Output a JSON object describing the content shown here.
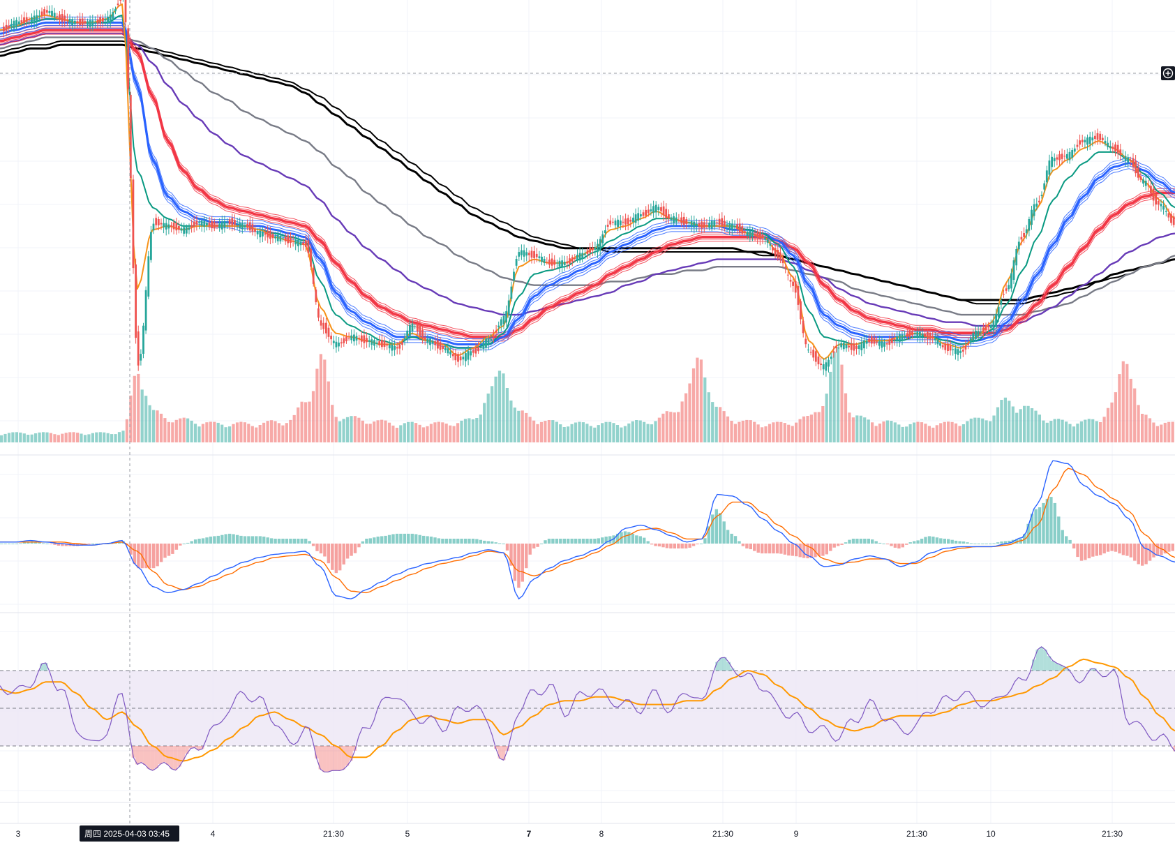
{
  "colors": {
    "up": "#26a69a",
    "down": "#ef5350",
    "ema_fast": "#f7931a",
    "ema_teal": "#089981",
    "ribbon_blue": "#2962ff",
    "ribbon_red": "#f23645",
    "purple": "#673ab7",
    "gray": "#787b86",
    "black": "#000000",
    "macd_line": "#2962ff",
    "signal_line": "#ff6d00",
    "rsi_line": "#7e57c2",
    "rsi_ma": "#ff9800",
    "rsi_band": "#ede7f6",
    "grid": "#f0f3fa",
    "separator": "#e0e3eb"
  },
  "crosshair": {
    "label": "周四 2025-04-03   03:45"
  },
  "plus_button": {
    "icon": "plus-circle-icon"
  },
  "x_axis": {
    "labels": [
      {
        "text": "3",
        "bold": false
      },
      {
        "text": "4",
        "bold": false
      },
      {
        "text": "21:30",
        "bold": false
      },
      {
        "text": "5",
        "bold": false
      },
      {
        "text": "7",
        "bold": true
      },
      {
        "text": "8",
        "bold": false
      },
      {
        "text": "21:30",
        "bold": false
      },
      {
        "text": "9",
        "bold": false
      },
      {
        "text": "21:30",
        "bold": false
      },
      {
        "text": "10",
        "bold": false
      },
      {
        "text": "21:30",
        "bold": false
      }
    ]
  },
  "chart_data": {
    "type": "line",
    "panes": [
      "price_with_moving_averages_and_volume",
      "macd",
      "rsi"
    ],
    "legend": "none",
    "grid": true,
    "price": {
      "close": [
        0.9,
        0.92,
        0.93,
        0.95,
        0.93,
        0.92,
        0.92,
        0.93,
        0.99,
        0.0,
        0.38,
        0.37,
        0.36,
        0.38,
        0.37,
        0.38,
        0.37,
        0.35,
        0.34,
        0.33,
        0.32,
        0.1,
        0.05,
        0.07,
        0.06,
        0.05,
        0.04,
        0.1,
        0.06,
        0.04,
        0.01,
        0.03,
        0.06,
        0.12,
        0.3,
        0.29,
        0.27,
        0.27,
        0.29,
        0.31,
        0.38,
        0.38,
        0.4,
        0.42,
        0.39,
        0.38,
        0.37,
        0.38,
        0.37,
        0.35,
        0.34,
        0.29,
        0.21,
        0.03,
        -0.01,
        0.05,
        0.04,
        0.06,
        0.05,
        0.07,
        0.08,
        0.07,
        0.04,
        0.03,
        0.08,
        0.1,
        0.2,
        0.34,
        0.43,
        0.55,
        0.56,
        0.6,
        0.61,
        0.58,
        0.55,
        0.49,
        0.43,
        0.38
      ],
      "volume": [
        0.5,
        0.5,
        0.5,
        0.5,
        0.5,
        0.5,
        0.5,
        0.5,
        0.6,
        4.0,
        1.6,
        1.3,
        1.2,
        1.1,
        1.0,
        1.0,
        1.0,
        1.0,
        1.1,
        1.2,
        2.2,
        4.5,
        1.5,
        1.3,
        1.2,
        1.1,
        1.0,
        1.0,
        1.0,
        1.0,
        1.1,
        1.2,
        2.6,
        3.8,
        1.6,
        1.3,
        1.1,
        1.0,
        1.0,
        1.0,
        1.0,
        1.0,
        1.1,
        1.2,
        1.6,
        2.6,
        4.6,
        1.8,
        1.3,
        1.1,
        1.0,
        1.0,
        1.1,
        1.3,
        2.2,
        4.8,
        1.4,
        1.2,
        1.1,
        1.0,
        1.0,
        1.0,
        1.0,
        1.1,
        1.2,
        1.4,
        2.2,
        2.0,
        1.6,
        1.2,
        1.1,
        1.1,
        1.2,
        2.0,
        4.8,
        1.4,
        1.1,
        1.0
      ],
      "ma_fast": [
        0.9,
        0.91,
        0.93,
        0.94,
        0.93,
        0.92,
        0.92,
        0.93,
        0.97,
        0.2,
        0.36,
        0.37,
        0.36,
        0.37,
        0.37,
        0.37,
        0.37,
        0.36,
        0.34,
        0.33,
        0.32,
        0.15,
        0.08,
        0.07,
        0.06,
        0.05,
        0.05,
        0.08,
        0.06,
        0.05,
        0.02,
        0.04,
        0.07,
        0.1,
        0.26,
        0.28,
        0.27,
        0.27,
        0.29,
        0.31,
        0.36,
        0.37,
        0.39,
        0.41,
        0.39,
        0.38,
        0.37,
        0.37,
        0.37,
        0.35,
        0.34,
        0.3,
        0.23,
        0.06,
        0.01,
        0.05,
        0.05,
        0.06,
        0.06,
        0.07,
        0.08,
        0.07,
        0.05,
        0.04,
        0.07,
        0.11,
        0.22,
        0.33,
        0.42,
        0.52,
        0.55,
        0.58,
        0.6,
        0.58,
        0.55,
        0.49,
        0.44,
        0.39
      ],
      "ma_teal": [
        0.9,
        0.91,
        0.92,
        0.93,
        0.93,
        0.92,
        0.92,
        0.92,
        0.94,
        0.52,
        0.42,
        0.39,
        0.37,
        0.37,
        0.37,
        0.37,
        0.37,
        0.36,
        0.35,
        0.34,
        0.33,
        0.22,
        0.13,
        0.1,
        0.08,
        0.06,
        0.05,
        0.07,
        0.06,
        0.05,
        0.04,
        0.04,
        0.05,
        0.08,
        0.18,
        0.24,
        0.25,
        0.26,
        0.28,
        0.3,
        0.33,
        0.35,
        0.37,
        0.39,
        0.39,
        0.38,
        0.37,
        0.37,
        0.37,
        0.36,
        0.35,
        0.32,
        0.26,
        0.14,
        0.07,
        0.06,
        0.05,
        0.06,
        0.06,
        0.06,
        0.07,
        0.07,
        0.06,
        0.05,
        0.06,
        0.09,
        0.16,
        0.25,
        0.34,
        0.44,
        0.5,
        0.54,
        0.57,
        0.57,
        0.55,
        0.51,
        0.46,
        0.42
      ],
      "ribbon_blue_center": [
        0.89,
        0.9,
        0.91,
        0.92,
        0.92,
        0.92,
        0.92,
        0.92,
        0.92,
        0.75,
        0.55,
        0.45,
        0.41,
        0.39,
        0.38,
        0.38,
        0.37,
        0.37,
        0.36,
        0.35,
        0.34,
        0.28,
        0.19,
        0.14,
        0.11,
        0.09,
        0.07,
        0.07,
        0.07,
        0.06,
        0.05,
        0.05,
        0.05,
        0.07,
        0.12,
        0.18,
        0.21,
        0.23,
        0.25,
        0.27,
        0.3,
        0.32,
        0.34,
        0.36,
        0.37,
        0.37,
        0.37,
        0.37,
        0.36,
        0.36,
        0.35,
        0.33,
        0.29,
        0.21,
        0.13,
        0.1,
        0.08,
        0.07,
        0.07,
        0.07,
        0.07,
        0.07,
        0.07,
        0.06,
        0.06,
        0.07,
        0.11,
        0.17,
        0.24,
        0.32,
        0.39,
        0.45,
        0.5,
        0.53,
        0.54,
        0.52,
        0.49,
        0.46
      ],
      "ribbon_red_center": [
        0.87,
        0.88,
        0.89,
        0.9,
        0.9,
        0.9,
        0.9,
        0.9,
        0.9,
        0.84,
        0.72,
        0.6,
        0.52,
        0.47,
        0.44,
        0.42,
        0.41,
        0.4,
        0.39,
        0.38,
        0.37,
        0.33,
        0.27,
        0.22,
        0.18,
        0.15,
        0.13,
        0.11,
        0.1,
        0.09,
        0.08,
        0.07,
        0.07,
        0.07,
        0.09,
        0.12,
        0.15,
        0.17,
        0.19,
        0.21,
        0.24,
        0.26,
        0.28,
        0.3,
        0.32,
        0.33,
        0.34,
        0.34,
        0.34,
        0.34,
        0.34,
        0.33,
        0.31,
        0.27,
        0.21,
        0.17,
        0.14,
        0.12,
        0.11,
        0.1,
        0.09,
        0.09,
        0.08,
        0.08,
        0.08,
        0.08,
        0.09,
        0.12,
        0.16,
        0.21,
        0.26,
        0.31,
        0.36,
        0.4,
        0.43,
        0.45,
        0.46,
        0.46
      ],
      "ma_purple": [
        0.86,
        0.87,
        0.88,
        0.89,
        0.89,
        0.89,
        0.89,
        0.89,
        0.89,
        0.86,
        0.81,
        0.75,
        0.7,
        0.66,
        0.62,
        0.59,
        0.56,
        0.54,
        0.52,
        0.5,
        0.48,
        0.44,
        0.39,
        0.35,
        0.31,
        0.28,
        0.25,
        0.22,
        0.2,
        0.18,
        0.16,
        0.15,
        0.14,
        0.13,
        0.13,
        0.14,
        0.15,
        0.16,
        0.17,
        0.18,
        0.19,
        0.21,
        0.22,
        0.24,
        0.25,
        0.26,
        0.27,
        0.28,
        0.28,
        0.28,
        0.28,
        0.28,
        0.27,
        0.25,
        0.23,
        0.2,
        0.18,
        0.16,
        0.15,
        0.14,
        0.13,
        0.12,
        0.11,
        0.11,
        0.1,
        0.1,
        0.1,
        0.11,
        0.13,
        0.15,
        0.18,
        0.21,
        0.24,
        0.27,
        0.3,
        0.32,
        0.34,
        0.35
      ],
      "ma_gray": [
        0.85,
        0.86,
        0.87,
        0.88,
        0.88,
        0.88,
        0.88,
        0.88,
        0.88,
        0.87,
        0.85,
        0.82,
        0.79,
        0.76,
        0.73,
        0.71,
        0.68,
        0.66,
        0.64,
        0.62,
        0.6,
        0.57,
        0.53,
        0.5,
        0.46,
        0.43,
        0.4,
        0.37,
        0.34,
        0.32,
        0.29,
        0.27,
        0.25,
        0.23,
        0.22,
        0.21,
        0.21,
        0.21,
        0.21,
        0.21,
        0.22,
        0.22,
        0.23,
        0.24,
        0.24,
        0.25,
        0.25,
        0.26,
        0.26,
        0.26,
        0.26,
        0.26,
        0.25,
        0.24,
        0.23,
        0.22,
        0.2,
        0.19,
        0.18,
        0.17,
        0.16,
        0.15,
        0.14,
        0.13,
        0.13,
        0.13,
        0.13,
        0.13,
        0.14,
        0.15,
        0.16,
        0.18,
        0.2,
        0.22,
        0.24,
        0.26,
        0.27,
        0.29
      ],
      "ma_black_1": [
        0.84,
        0.85,
        0.86,
        0.86,
        0.87,
        0.87,
        0.87,
        0.87,
        0.87,
        0.86,
        0.85,
        0.84,
        0.83,
        0.82,
        0.81,
        0.8,
        0.79,
        0.78,
        0.77,
        0.76,
        0.74,
        0.72,
        0.69,
        0.66,
        0.63,
        0.6,
        0.57,
        0.54,
        0.51,
        0.48,
        0.45,
        0.42,
        0.4,
        0.38,
        0.36,
        0.34,
        0.33,
        0.32,
        0.31,
        0.31,
        0.3,
        0.3,
        0.3,
        0.3,
        0.3,
        0.3,
        0.3,
        0.3,
        0.3,
        0.3,
        0.29,
        0.29,
        0.28,
        0.27,
        0.26,
        0.25,
        0.24,
        0.23,
        0.22,
        0.21,
        0.2,
        0.19,
        0.18,
        0.17,
        0.16,
        0.16,
        0.16,
        0.16,
        0.17,
        0.18,
        0.19,
        0.2,
        0.22,
        0.23,
        0.24,
        0.26,
        0.27,
        0.28
      ],
      "ma_black_2": [
        0.83,
        0.84,
        0.85,
        0.85,
        0.86,
        0.86,
        0.86,
        0.86,
        0.86,
        0.85,
        0.84,
        0.83,
        0.82,
        0.81,
        0.8,
        0.79,
        0.78,
        0.77,
        0.76,
        0.75,
        0.73,
        0.7,
        0.67,
        0.64,
        0.61,
        0.58,
        0.55,
        0.52,
        0.49,
        0.46,
        0.43,
        0.4,
        0.38,
        0.36,
        0.34,
        0.33,
        0.32,
        0.31,
        0.31,
        0.31,
        0.31,
        0.31,
        0.31,
        0.31,
        0.31,
        0.31,
        0.31,
        0.31,
        0.31,
        0.3,
        0.3,
        0.29,
        0.28,
        0.27,
        0.26,
        0.25,
        0.24,
        0.23,
        0.22,
        0.21,
        0.2,
        0.19,
        0.18,
        0.17,
        0.17,
        0.17,
        0.17,
        0.17,
        0.18,
        0.19,
        0.2,
        0.21,
        0.22,
        0.24,
        0.25,
        0.26,
        0.27,
        0.28
      ]
    },
    "macd": {
      "macd": [
        0.1,
        0.1,
        0.2,
        0.1,
        0.0,
        -0.1,
        -0.1,
        0.0,
        0.2,
        -1.5,
        -2.8,
        -3.2,
        -3.0,
        -2.6,
        -2.1,
        -1.6,
        -1.2,
        -0.9,
        -0.7,
        -0.6,
        -0.5,
        -1.5,
        -3.4,
        -3.6,
        -3.0,
        -2.5,
        -2.0,
        -1.6,
        -1.3,
        -1.1,
        -0.9,
        -0.6,
        -0.4,
        -0.6,
        -3.6,
        -2.3,
        -1.6,
        -1.1,
        -0.8,
        -0.4,
        0.2,
        1.0,
        1.2,
        0.9,
        0.5,
        0.1,
        0.3,
        3.2,
        3.1,
        2.5,
        1.6,
        0.8,
        0.0,
        -0.8,
        -1.5,
        -1.4,
        -1.0,
        -0.8,
        -1.0,
        -1.5,
        -1.2,
        -0.6,
        -0.3,
        -0.2,
        -0.2,
        -0.2,
        0.0,
        0.4,
        2.6,
        5.4,
        5.2,
        3.8,
        3.1,
        2.6,
        1.6,
        -0.3,
        -0.8,
        -1.2
      ],
      "signal": [
        0.1,
        0.1,
        0.1,
        0.1,
        0.1,
        0.0,
        -0.1,
        0.0,
        0.1,
        -0.5,
        -1.8,
        -2.7,
        -3.0,
        -2.8,
        -2.4,
        -2.0,
        -1.5,
        -1.2,
        -0.9,
        -0.8,
        -0.7,
        -1.1,
        -2.2,
        -3.1,
        -3.2,
        -2.8,
        -2.4,
        -2.0,
        -1.6,
        -1.3,
        -1.1,
        -0.8,
        -0.5,
        -0.6,
        -1.8,
        -2.1,
        -1.8,
        -1.3,
        -1.0,
        -0.6,
        -0.1,
        0.5,
        0.9,
        1.0,
        0.7,
        0.3,
        0.3,
        1.8,
        2.7,
        2.7,
        2.0,
        1.2,
        0.5,
        -0.2,
        -1.0,
        -1.3,
        -1.2,
        -1.0,
        -1.0,
        -1.3,
        -1.3,
        -0.9,
        -0.5,
        -0.3,
        -0.2,
        -0.2,
        -0.1,
        0.2,
        1.2,
        3.5,
        4.9,
        4.5,
        3.6,
        2.9,
        2.1,
        0.6,
        -0.3,
        -0.9
      ]
    },
    "rsi": {
      "ylim": [
        0,
        100
      ],
      "levels": [
        70,
        50,
        30
      ],
      "rsi": [
        62,
        58,
        64,
        72,
        60,
        40,
        30,
        38,
        58,
        18,
        20,
        18,
        22,
        30,
        38,
        50,
        58,
        54,
        44,
        30,
        40,
        20,
        14,
        24,
        40,
        52,
        58,
        46,
        44,
        40,
        48,
        52,
        42,
        20,
        50,
        58,
        62,
        48,
        56,
        60,
        54,
        52,
        50,
        58,
        48,
        60,
        52,
        76,
        72,
        66,
        62,
        50,
        46,
        40,
        38,
        35,
        44,
        52,
        46,
        38,
        40,
        50,
        54,
        58,
        54,
        52,
        60,
        64,
        80,
        78,
        68,
        66,
        70,
        68,
        44,
        38,
        34,
        30
      ],
      "ma": [
        60,
        58,
        60,
        64,
        64,
        58,
        50,
        44,
        48,
        40,
        30,
        24,
        22,
        24,
        28,
        34,
        40,
        46,
        48,
        44,
        40,
        36,
        30,
        24,
        24,
        30,
        38,
        44,
        46,
        44,
        42,
        44,
        44,
        36,
        40,
        46,
        52,
        54,
        54,
        56,
        56,
        54,
        52,
        52,
        52,
        54,
        54,
        60,
        66,
        70,
        68,
        62,
        56,
        50,
        44,
        40,
        38,
        40,
        44,
        46,
        46,
        46,
        48,
        52,
        54,
        54,
        56,
        58,
        62,
        66,
        72,
        76,
        74,
        72,
        66,
        56,
        46,
        38
      ]
    }
  }
}
